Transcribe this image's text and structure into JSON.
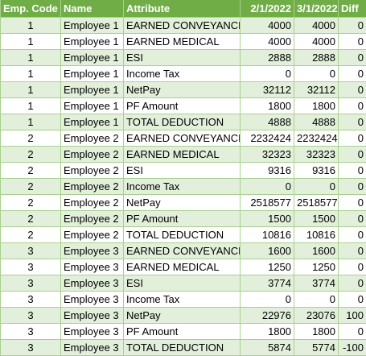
{
  "sheet": {
    "headers": {
      "code": "Emp. Code",
      "name": "Name",
      "attribute": "Attribute",
      "date1": "2/1/2022",
      "date2": "3/1/2022",
      "diff": "Diff"
    },
    "rows": [
      {
        "code": "1",
        "name": "Employee 1",
        "attribute": "EARNED CONVEYANCE",
        "date1": "4000",
        "date2": "4000",
        "diff": "0"
      },
      {
        "code": "1",
        "name": "Employee 1",
        "attribute": "EARNED MEDICAL",
        "date1": "4000",
        "date2": "4000",
        "diff": "0"
      },
      {
        "code": "1",
        "name": "Employee 1",
        "attribute": "ESI",
        "date1": "2888",
        "date2": "2888",
        "diff": "0"
      },
      {
        "code": "1",
        "name": "Employee 1",
        "attribute": "Income Tax",
        "date1": "0",
        "date2": "0",
        "diff": "0"
      },
      {
        "code": "1",
        "name": "Employee 1",
        "attribute": "NetPay",
        "date1": "32112",
        "date2": "32112",
        "diff": "0"
      },
      {
        "code": "1",
        "name": "Employee 1",
        "attribute": "PF Amount",
        "date1": "1800",
        "date2": "1800",
        "diff": "0"
      },
      {
        "code": "1",
        "name": "Employee 1",
        "attribute": "TOTAL DEDUCTION",
        "date1": "4888",
        "date2": "4888",
        "diff": "0"
      },
      {
        "code": "2",
        "name": "Employee 2",
        "attribute": "EARNED CONVEYANCE",
        "date1": "2232424",
        "date2": "2232424",
        "diff": "0"
      },
      {
        "code": "2",
        "name": "Employee 2",
        "attribute": "EARNED MEDICAL",
        "date1": "32323",
        "date2": "32323",
        "diff": "0"
      },
      {
        "code": "2",
        "name": "Employee 2",
        "attribute": "ESI",
        "date1": "9316",
        "date2": "9316",
        "diff": "0"
      },
      {
        "code": "2",
        "name": "Employee 2",
        "attribute": "Income Tax",
        "date1": "0",
        "date2": "0",
        "diff": "0"
      },
      {
        "code": "2",
        "name": "Employee 2",
        "attribute": "NetPay",
        "date1": "2518577",
        "date2": "2518577",
        "diff": "0"
      },
      {
        "code": "2",
        "name": "Employee 2",
        "attribute": "PF Amount",
        "date1": "1500",
        "date2": "1500",
        "diff": "0"
      },
      {
        "code": "2",
        "name": "Employee 2",
        "attribute": "TOTAL DEDUCTION",
        "date1": "10816",
        "date2": "10816",
        "diff": "0"
      },
      {
        "code": "3",
        "name": "Employee 3",
        "attribute": "EARNED CONVEYANCE",
        "date1": "1600",
        "date2": "1600",
        "diff": "0"
      },
      {
        "code": "3",
        "name": "Employee 3",
        "attribute": "EARNED MEDICAL",
        "date1": "1250",
        "date2": "1250",
        "diff": "0"
      },
      {
        "code": "3",
        "name": "Employee 3",
        "attribute": "ESI",
        "date1": "3774",
        "date2": "3774",
        "diff": "0"
      },
      {
        "code": "3",
        "name": "Employee 3",
        "attribute": "Income Tax",
        "date1": "0",
        "date2": "0",
        "diff": "0"
      },
      {
        "code": "3",
        "name": "Employee 3",
        "attribute": "NetPay",
        "date1": "22976",
        "date2": "23076",
        "diff": "100"
      },
      {
        "code": "3",
        "name": "Employee 3",
        "attribute": "PF Amount",
        "date1": "1800",
        "date2": "1800",
        "diff": "0"
      },
      {
        "code": "3",
        "name": "Employee 3",
        "attribute": "TOTAL DEDUCTION",
        "date1": "5874",
        "date2": "5774",
        "diff": "-100"
      }
    ]
  },
  "colors": {
    "header_bg": "#70ad47",
    "header_text": "#ffffff",
    "band_green": "#e2efda",
    "band_white": "#ffffff",
    "grid_line": "#a9d08e"
  }
}
